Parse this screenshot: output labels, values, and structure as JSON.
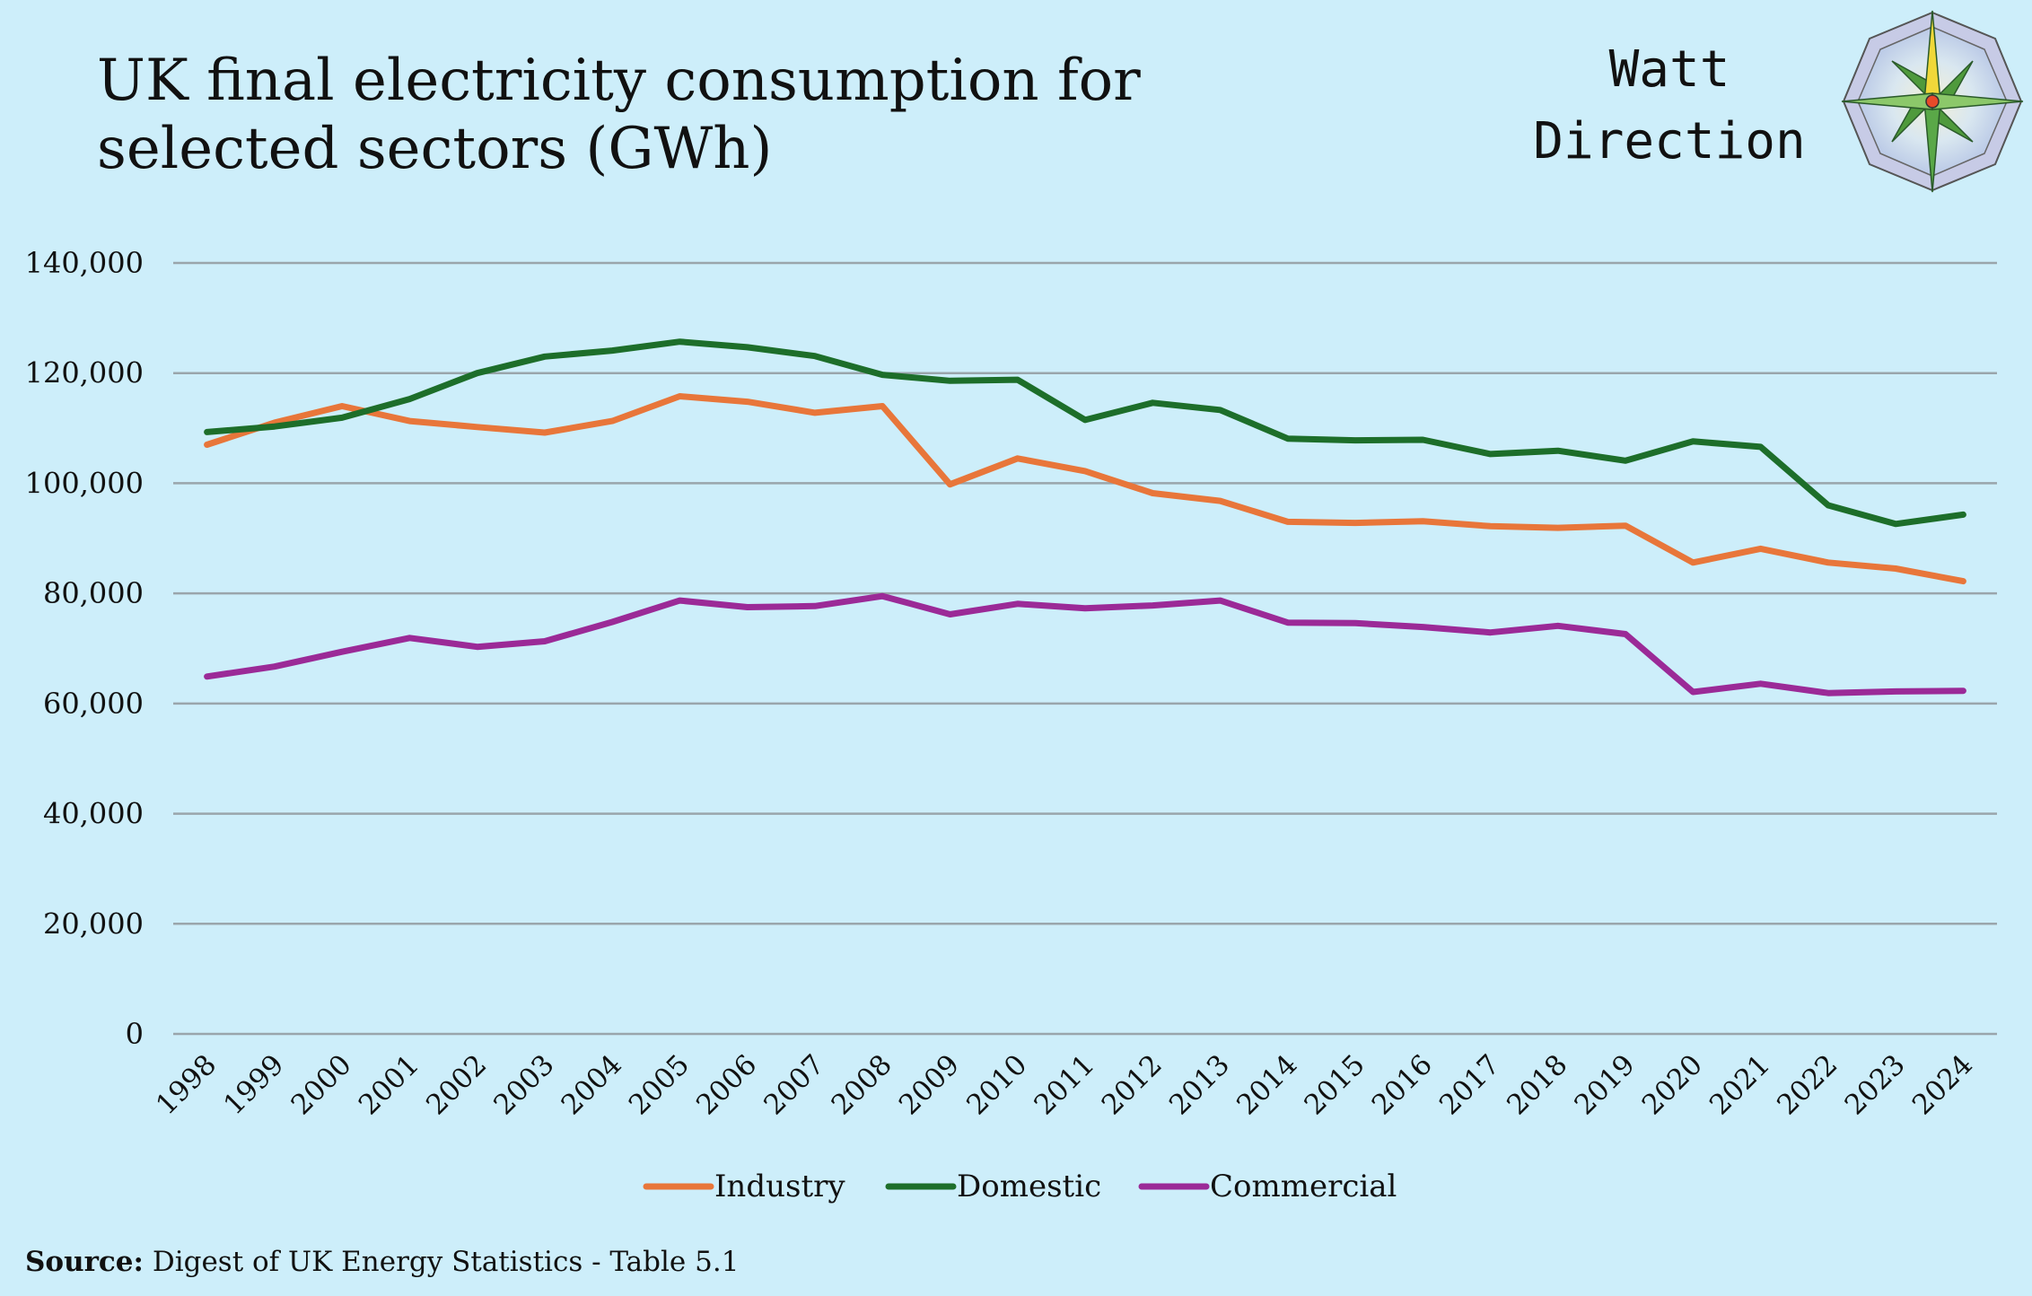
{
  "title_line1": "UK final electricity consumption for",
  "title_line2": "selected sectors (GWh)",
  "logo": {
    "line1": "Watt",
    "line2": "Direction"
  },
  "source": {
    "label": "Source:",
    "text": "Digest of UK Energy Statistics - Table 5.1"
  },
  "chart_data": {
    "type": "line",
    "title": "UK final electricity consumption for selected sectors (GWh)",
    "xlabel": "",
    "ylabel": "",
    "ylim": [
      0,
      140000
    ],
    "yticks": [
      0,
      20000,
      40000,
      60000,
      80000,
      100000,
      120000,
      140000
    ],
    "ytick_labels": [
      "0",
      "20,000",
      "40,000",
      "60,000",
      "80,000",
      "100,000",
      "120,000",
      "140,000"
    ],
    "grid": true,
    "legend_position": "bottom",
    "categories": [
      "1998",
      "1999",
      "2000",
      "2001",
      "2002",
      "2003",
      "2004",
      "2005",
      "2006",
      "2007",
      "2008",
      "2009",
      "2010",
      "2011",
      "2012",
      "2013",
      "2014",
      "2015",
      "2016",
      "2017",
      "2018",
      "2019",
      "2020",
      "2021",
      "2022",
      "2023",
      "2024"
    ],
    "series": [
      {
        "name": "Industry",
        "color": "#e8763a",
        "values": [
          107000,
          111000,
          114000,
          111300,
          110200,
          109200,
          111300,
          115800,
          114800,
          112800,
          114000,
          99800,
          104500,
          102200,
          98200,
          96800,
          93000,
          92800,
          93100,
          92200,
          91900,
          92300,
          85600,
          88100,
          85600,
          84500,
          82200
        ]
      },
      {
        "name": "Domestic",
        "color": "#1d6e2a",
        "values": [
          109300,
          110300,
          111900,
          115300,
          120000,
          123000,
          124100,
          125700,
          124700,
          123100,
          119700,
          118600,
          118800,
          111500,
          114600,
          113300,
          108100,
          107800,
          107900,
          105300,
          105900,
          104100,
          107600,
          106600,
          96000,
          92600,
          94300
        ]
      },
      {
        "name": "Commercial",
        "color": "#9b2a97",
        "values": [
          64900,
          66700,
          69400,
          71900,
          70300,
          71300,
          74800,
          78700,
          77500,
          77700,
          79500,
          76200,
          78100,
          77300,
          77800,
          78700,
          74700,
          74600,
          73900,
          72900,
          74100,
          72600,
          62100,
          63600,
          61900,
          62200,
          62300
        ]
      }
    ]
  }
}
